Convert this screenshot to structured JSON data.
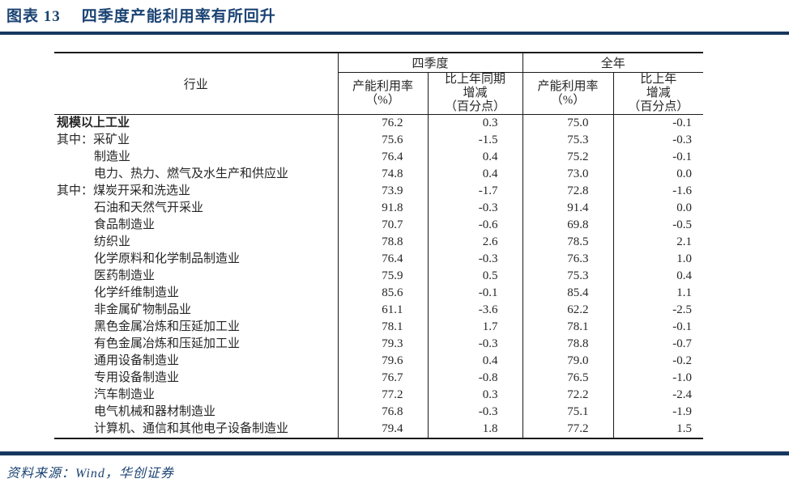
{
  "title": {
    "figure_label": "图表 13",
    "text": "四季度产能利用率有所回升"
  },
  "colors": {
    "navy_accent": "#17375e",
    "title_text": "#1b4373",
    "table_text": "#262626",
    "table_border": "#1a1a1a"
  },
  "table": {
    "col_industry": "行业",
    "group_q4": "四季度",
    "group_year": "全年",
    "sub_headers": {
      "q4_util": "产能利用率\n（%）",
      "q4_chg": "比上年同期\n增减\n（百分点）",
      "yr_util": "产能利用率\n（%）",
      "yr_chg": "比上年\n增减\n（百分点）"
    },
    "rows": [
      {
        "label": "规模以上工业",
        "indent": 0,
        "q4_util": "76.2",
        "q4_chg": "0.3",
        "yr_util": "75.0",
        "yr_chg": "-0.1"
      },
      {
        "label": "其中：采矿业",
        "indent": 1,
        "q4_util": "75.6",
        "q4_chg": "-1.5",
        "yr_util": "75.3",
        "yr_chg": "-0.3"
      },
      {
        "label": "制造业",
        "indent": 2,
        "q4_util": "76.4",
        "q4_chg": "0.4",
        "yr_util": "75.2",
        "yr_chg": "-0.1"
      },
      {
        "label": "电力、热力、燃气及水生产和供应业",
        "indent": 2,
        "q4_util": "74.8",
        "q4_chg": "0.4",
        "yr_util": "73.0",
        "yr_chg": "0.0"
      },
      {
        "label": "其中：煤炭开采和洗选业",
        "indent": 1,
        "q4_util": "73.9",
        "q4_chg": "-1.7",
        "yr_util": "72.8",
        "yr_chg": "-1.6"
      },
      {
        "label": "石油和天然气开采业",
        "indent": 2,
        "q4_util": "91.8",
        "q4_chg": "-0.3",
        "yr_util": "91.4",
        "yr_chg": "0.0"
      },
      {
        "label": "食品制造业",
        "indent": 2,
        "q4_util": "70.7",
        "q4_chg": "-0.6",
        "yr_util": "69.8",
        "yr_chg": "-0.5"
      },
      {
        "label": "纺织业",
        "indent": 2,
        "q4_util": "78.8",
        "q4_chg": "2.6",
        "yr_util": "78.5",
        "yr_chg": "2.1"
      },
      {
        "label": "化学原料和化学制品制造业",
        "indent": 2,
        "q4_util": "76.4",
        "q4_chg": "-0.3",
        "yr_util": "76.3",
        "yr_chg": "1.0"
      },
      {
        "label": "医药制造业",
        "indent": 2,
        "q4_util": "75.9",
        "q4_chg": "0.5",
        "yr_util": "75.3",
        "yr_chg": "0.4"
      },
      {
        "label": "化学纤维制造业",
        "indent": 2,
        "q4_util": "85.6",
        "q4_chg": "-0.1",
        "yr_util": "85.4",
        "yr_chg": "1.1"
      },
      {
        "label": "非金属矿物制品业",
        "indent": 2,
        "q4_util": "61.1",
        "q4_chg": "-3.6",
        "yr_util": "62.2",
        "yr_chg": "-2.5"
      },
      {
        "label": "黑色金属冶炼和压延加工业",
        "indent": 2,
        "q4_util": "78.1",
        "q4_chg": "1.7",
        "yr_util": "78.1",
        "yr_chg": "-0.1"
      },
      {
        "label": "有色金属冶炼和压延加工业",
        "indent": 2,
        "q4_util": "79.3",
        "q4_chg": "-0.3",
        "yr_util": "78.8",
        "yr_chg": "-0.7"
      },
      {
        "label": "通用设备制造业",
        "indent": 2,
        "q4_util": "79.6",
        "q4_chg": "0.4",
        "yr_util": "79.0",
        "yr_chg": "-0.2"
      },
      {
        "label": "专用设备制造业",
        "indent": 2,
        "q4_util": "76.7",
        "q4_chg": "-0.8",
        "yr_util": "76.5",
        "yr_chg": "-1.0"
      },
      {
        "label": "汽车制造业",
        "indent": 2,
        "q4_util": "77.2",
        "q4_chg": "0.3",
        "yr_util": "72.2",
        "yr_chg": "-2.4"
      },
      {
        "label": "电气机械和器材制造业",
        "indent": 2,
        "q4_util": "76.8",
        "q4_chg": "-0.3",
        "yr_util": "75.1",
        "yr_chg": "-1.9"
      },
      {
        "label": "计算机、通信和其他电子设备制造业",
        "indent": 2,
        "q4_util": "79.4",
        "q4_chg": "1.8",
        "yr_util": "77.2",
        "yr_chg": "1.5"
      }
    ]
  },
  "footer": {
    "source": "资料来源：Wind，华创证券"
  }
}
